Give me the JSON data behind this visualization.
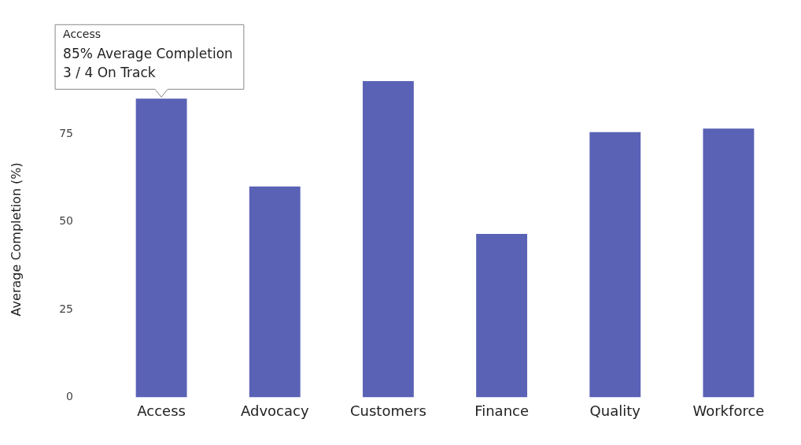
{
  "chart_data": {
    "type": "bar",
    "ylabel": "Average Completion (%)",
    "categories": [
      "Access",
      "Advocacy",
      "Customers",
      "Finance",
      "Quality",
      "Workforce"
    ],
    "values": [
      85,
      60,
      90,
      46.5,
      75.5,
      76.5
    ],
    "color": "#5a62b6",
    "ylim": [
      0,
      90
    ],
    "yticks": [
      0,
      25,
      50,
      75
    ],
    "grid": false,
    "legend": false,
    "annotations": [
      {
        "text": "Access\n85% Average Completion\n3 / 4 On Track",
        "x": "Access",
        "y": 85
      }
    ]
  }
}
